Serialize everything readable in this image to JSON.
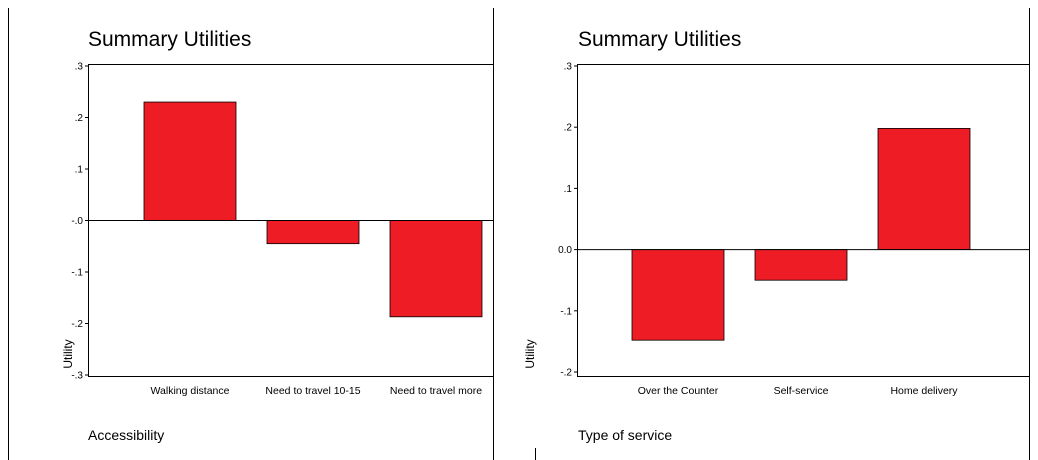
{
  "chart_data": [
    {
      "type": "bar",
      "title": "Summary Utilities",
      "xlabel": "Accessibility",
      "ylabel": "Utility",
      "ylim": [
        -0.3,
        0.3
      ],
      "yticks": [
        0.3,
        0.2,
        0.1,
        0.0,
        -0.1,
        -0.2,
        -0.3
      ],
      "yticklabels": [
        ".3",
        ".2",
        ".1",
        "-.0",
        "-.1",
        "-.2",
        "-.3"
      ],
      "categories": [
        "Walking distance",
        "Need to travel 10-15",
        "Need to travel more"
      ],
      "values": [
        0.23,
        -0.045,
        -0.187
      ],
      "bar_color": "#ee1c25",
      "grid": false,
      "legend": "none"
    },
    {
      "type": "bar",
      "title": "Summary Utilities",
      "xlabel": "Type of service",
      "ylabel": "Utility",
      "ylim": [
        -0.2,
        0.3
      ],
      "yticks": [
        0.3,
        0.2,
        0.1,
        0.0,
        -0.1,
        -0.2
      ],
      "yticklabels": [
        ".3",
        ".2",
        ".1",
        "0.0",
        "-.1",
        "-.2"
      ],
      "categories": [
        "Over the Counter",
        "Self-service",
        "Home delivery"
      ],
      "values": [
        -0.148,
        -0.05,
        0.198
      ],
      "bar_color": "#ee1c25",
      "grid": false,
      "legend": "none"
    }
  ]
}
